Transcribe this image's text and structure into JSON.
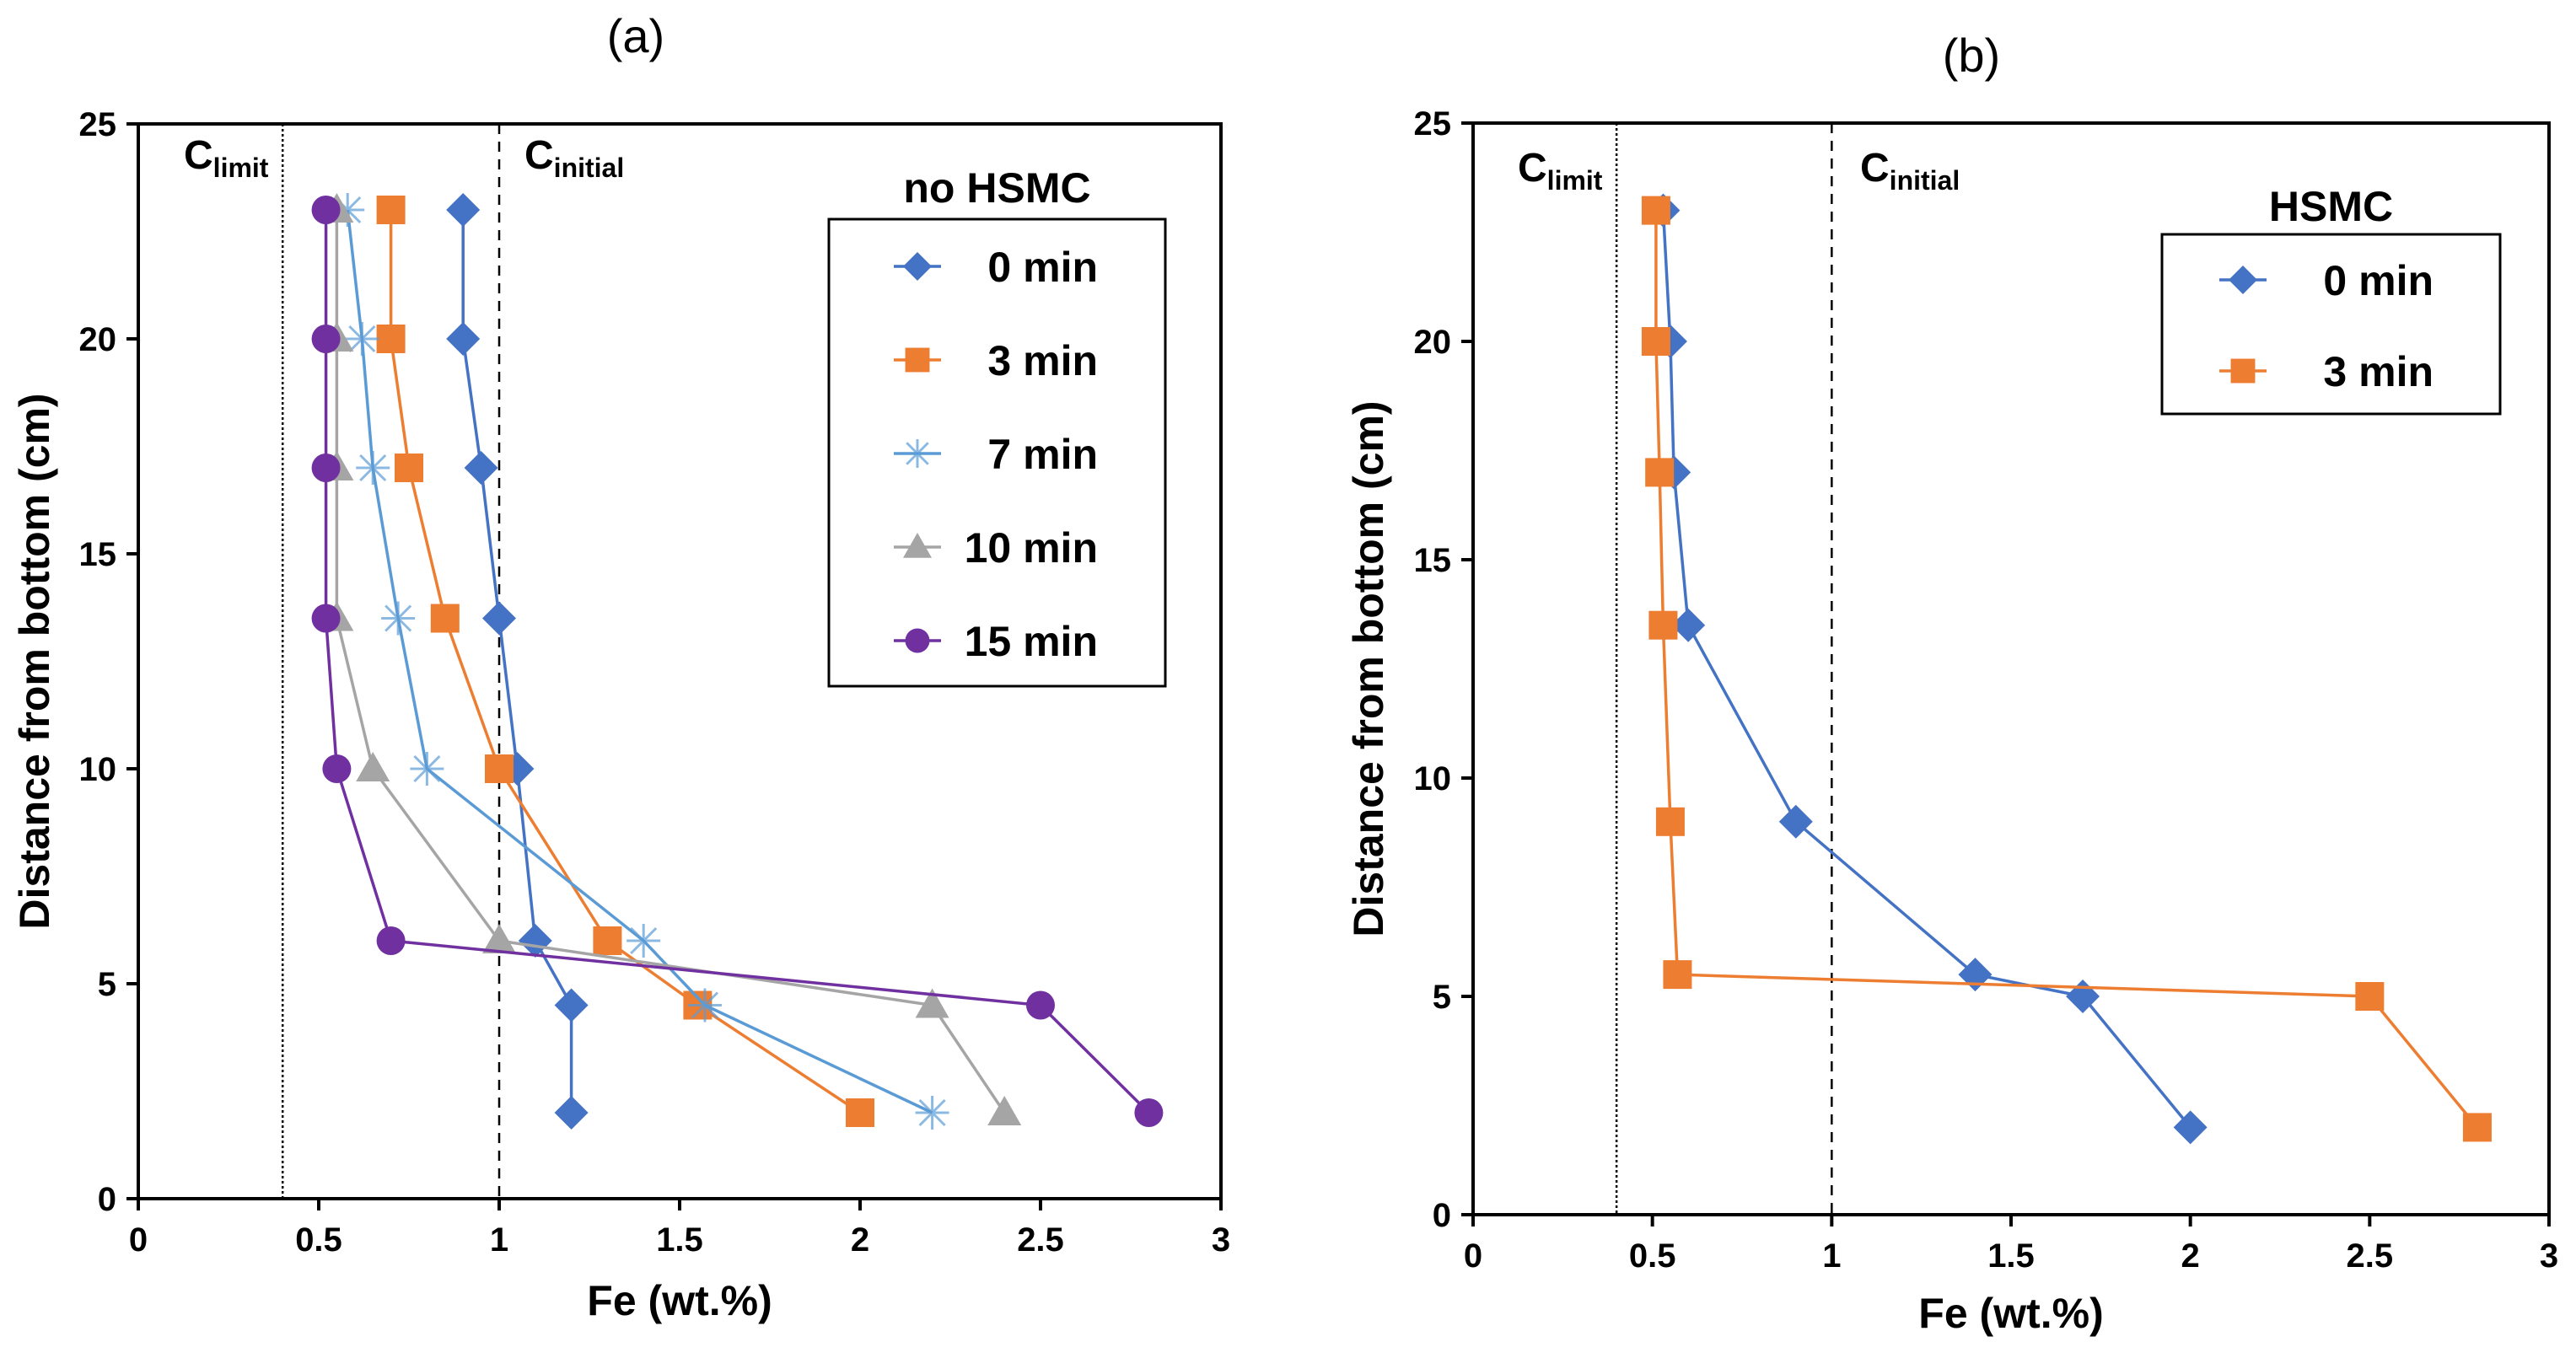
{
  "chart_data": [
    {
      "type": "line",
      "title": "(a)",
      "xlabel": "Fe (wt.%)",
      "ylabel": "Distance from bottom (cm)",
      "xlim": [
        0,
        3
      ],
      "ylim": [
        0,
        25
      ],
      "xticks": [
        "0",
        "0.5",
        "1",
        "1.5",
        "2",
        "2.5",
        "3"
      ],
      "yticks": [
        "0",
        "5",
        "10",
        "15",
        "20",
        "25"
      ],
      "grid": false,
      "legend_title": "no HSMC",
      "legend_position": "top-right",
      "reference_lines": [
        {
          "label_main": "C",
          "label_sub": "limit",
          "x": 0.4,
          "style": "dotted"
        },
        {
          "label_main": "C",
          "label_sub": "initial",
          "x": 1.0,
          "style": "dashed"
        }
      ],
      "series": [
        {
          "name": "0 min",
          "color": "#4472C4",
          "marker": "diamond",
          "x": [
            0.9,
            0.9,
            0.95,
            1.0,
            1.05,
            1.1,
            1.2,
            1.2
          ],
          "y": [
            23,
            20,
            17,
            13.5,
            10,
            6,
            4.5,
            2
          ]
        },
        {
          "name": "3 min",
          "color": "#ED7D31",
          "marker": "square",
          "x": [
            0.7,
            0.7,
            0.75,
            0.85,
            1.0,
            1.3,
            1.55,
            2.0
          ],
          "y": [
            23,
            20,
            17,
            13.5,
            10,
            6,
            4.5,
            2
          ]
        },
        {
          "name": "7 min",
          "color": "#5B9BD5",
          "marker": "star",
          "x": [
            0.58,
            0.62,
            0.65,
            0.72,
            0.8,
            1.4,
            1.57,
            2.2
          ],
          "y": [
            23,
            20,
            17,
            13.5,
            10,
            6,
            4.5,
            2
          ]
        },
        {
          "name": "10 min",
          "color": "#A5A5A5",
          "marker": "triangle",
          "x": [
            0.55,
            0.55,
            0.55,
            0.55,
            0.65,
            1.0,
            2.2,
            2.4
          ],
          "y": [
            23,
            20,
            17,
            13.5,
            10,
            6,
            4.5,
            2
          ]
        },
        {
          "name": "15 min",
          "color": "#7030A0",
          "marker": "circle",
          "x": [
            0.52,
            0.52,
            0.52,
            0.52,
            0.55,
            0.7,
            2.5,
            2.8
          ],
          "y": [
            23,
            20,
            17,
            13.5,
            10,
            6,
            4.5,
            2
          ]
        }
      ]
    },
    {
      "type": "line",
      "title": "(b)",
      "xlabel": "Fe (wt.%)",
      "ylabel": "Distance from bottom (cm)",
      "xlim": [
        0,
        3
      ],
      "ylim": [
        0,
        25
      ],
      "xticks": [
        "0",
        "0.5",
        "1",
        "1.5",
        "2",
        "2.5",
        "3"
      ],
      "yticks": [
        "0",
        "5",
        "10",
        "15",
        "20",
        "25"
      ],
      "grid": false,
      "legend_title": "HSMC",
      "legend_position": "top-right",
      "reference_lines": [
        {
          "label_main": "C",
          "label_sub": "limit",
          "x": 0.4,
          "style": "dotted"
        },
        {
          "label_main": "C",
          "label_sub": "initial",
          "x": 1.0,
          "style": "dashed"
        }
      ],
      "series": [
        {
          "name": "0 min",
          "color": "#4472C4",
          "marker": "diamond",
          "x": [
            0.53,
            0.55,
            0.56,
            0.6,
            0.9,
            1.4,
            1.7,
            2.0
          ],
          "y": [
            23,
            20,
            17,
            13.5,
            9,
            5.5,
            5,
            2
          ]
        },
        {
          "name": "3 min",
          "color": "#ED7D31",
          "marker": "square",
          "x": [
            0.51,
            0.51,
            0.52,
            0.53,
            0.55,
            0.57,
            2.5,
            2.8
          ],
          "y": [
            23,
            20,
            17,
            13.5,
            9,
            5.5,
            5,
            2
          ]
        }
      ]
    }
  ]
}
